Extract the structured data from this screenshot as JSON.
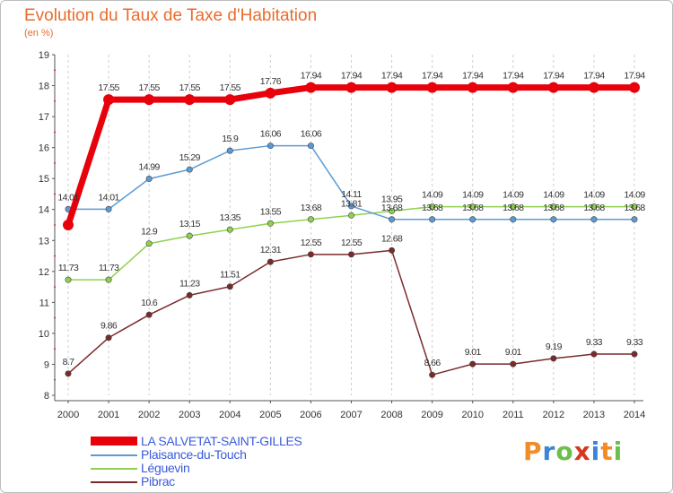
{
  "header": {
    "title": "Evolution du Taux de Taxe d'Habitation",
    "subtitle": "(en %)"
  },
  "logo": {
    "text": "Proxiti",
    "letters": [
      "P",
      "r",
      "o",
      "x",
      "i",
      "t",
      "i"
    ],
    "colors": [
      "#f28c28",
      "#3a86d6",
      "#6cc04a",
      "#d6381f",
      "#3a86d6",
      "#f28c28",
      "#6cc04a"
    ]
  },
  "chart_data": {
    "type": "line",
    "title": "Evolution du Taux de Taxe d'Habitation",
    "subtitle": "(en %)",
    "xlabel": "",
    "ylabel": "",
    "x": [
      "2000",
      "2001",
      "2002",
      "2003",
      "2004",
      "2005",
      "2006",
      "2007",
      "2008",
      "2009",
      "2010",
      "2011",
      "2012",
      "2013",
      "2014"
    ],
    "ylim": [
      8,
      19
    ],
    "yticks": [
      "8",
      "9",
      "10",
      "11",
      "12",
      "13",
      "14",
      "15",
      "16",
      "17",
      "18",
      "19"
    ],
    "grid": "vertical dashed",
    "legend_position": "bottom-left",
    "series": [
      {
        "name": "LA SALVETAT-SAINT-GILLES",
        "color": "#e8000b",
        "values": [
          13.5,
          17.55,
          17.55,
          17.55,
          17.55,
          17.76,
          17.94,
          17.94,
          17.94,
          17.94,
          17.94,
          17.94,
          17.94,
          17.94,
          17.94
        ],
        "labels": [
          "",
          "17.55",
          "17.55",
          "17.55",
          "17.55",
          "17.76",
          "17.94",
          "17.94",
          "17.94",
          "17.94",
          "17.94",
          "17.94",
          "17.94",
          "17.94",
          "17.94"
        ]
      },
      {
        "name": "Plaisance-du-Touch",
        "color": "#5b9bd5",
        "values": [
          14.01,
          14.01,
          14.99,
          15.29,
          15.9,
          16.06,
          16.06,
          14.11,
          13.68,
          13.68,
          13.68,
          13.68,
          13.68,
          13.68,
          13.68
        ],
        "labels": [
          "14.01",
          "14.01",
          "14.99",
          "15.29",
          "15.9",
          "16.06",
          "16.06",
          "14.11",
          "13.68",
          "13.68",
          "13.68",
          "13.68",
          "13.68",
          "13.68",
          "13.68"
        ]
      },
      {
        "name": "Léguevin",
        "color": "#8fd14f",
        "values": [
          11.73,
          11.73,
          12.9,
          13.15,
          13.35,
          13.55,
          13.68,
          13.81,
          13.95,
          14.09,
          14.09,
          14.09,
          14.09,
          14.09,
          14.09
        ],
        "labels": [
          "11.73",
          "11.73",
          "12.9",
          "13.15",
          "13.35",
          "13.55",
          "13.68",
          "13.81",
          "13.95",
          "14.09",
          "14.09",
          "14.09",
          "14.09",
          "14.09",
          "14.09"
        ]
      },
      {
        "name": "Pibrac",
        "color": "#7b2a2a",
        "values": [
          8.7,
          9.86,
          10.6,
          11.23,
          11.51,
          12.31,
          12.55,
          12.55,
          12.68,
          8.66,
          9.01,
          9.01,
          9.19,
          9.33,
          9.33
        ],
        "labels": [
          "8.7",
          "9.86",
          "10.6",
          "11.23",
          "11.51",
          "12.31",
          "12.55",
          "12.55",
          "12.68",
          "8.66",
          "9.01",
          "9.01",
          "9.19",
          "9.33",
          "9.33"
        ]
      }
    ]
  }
}
